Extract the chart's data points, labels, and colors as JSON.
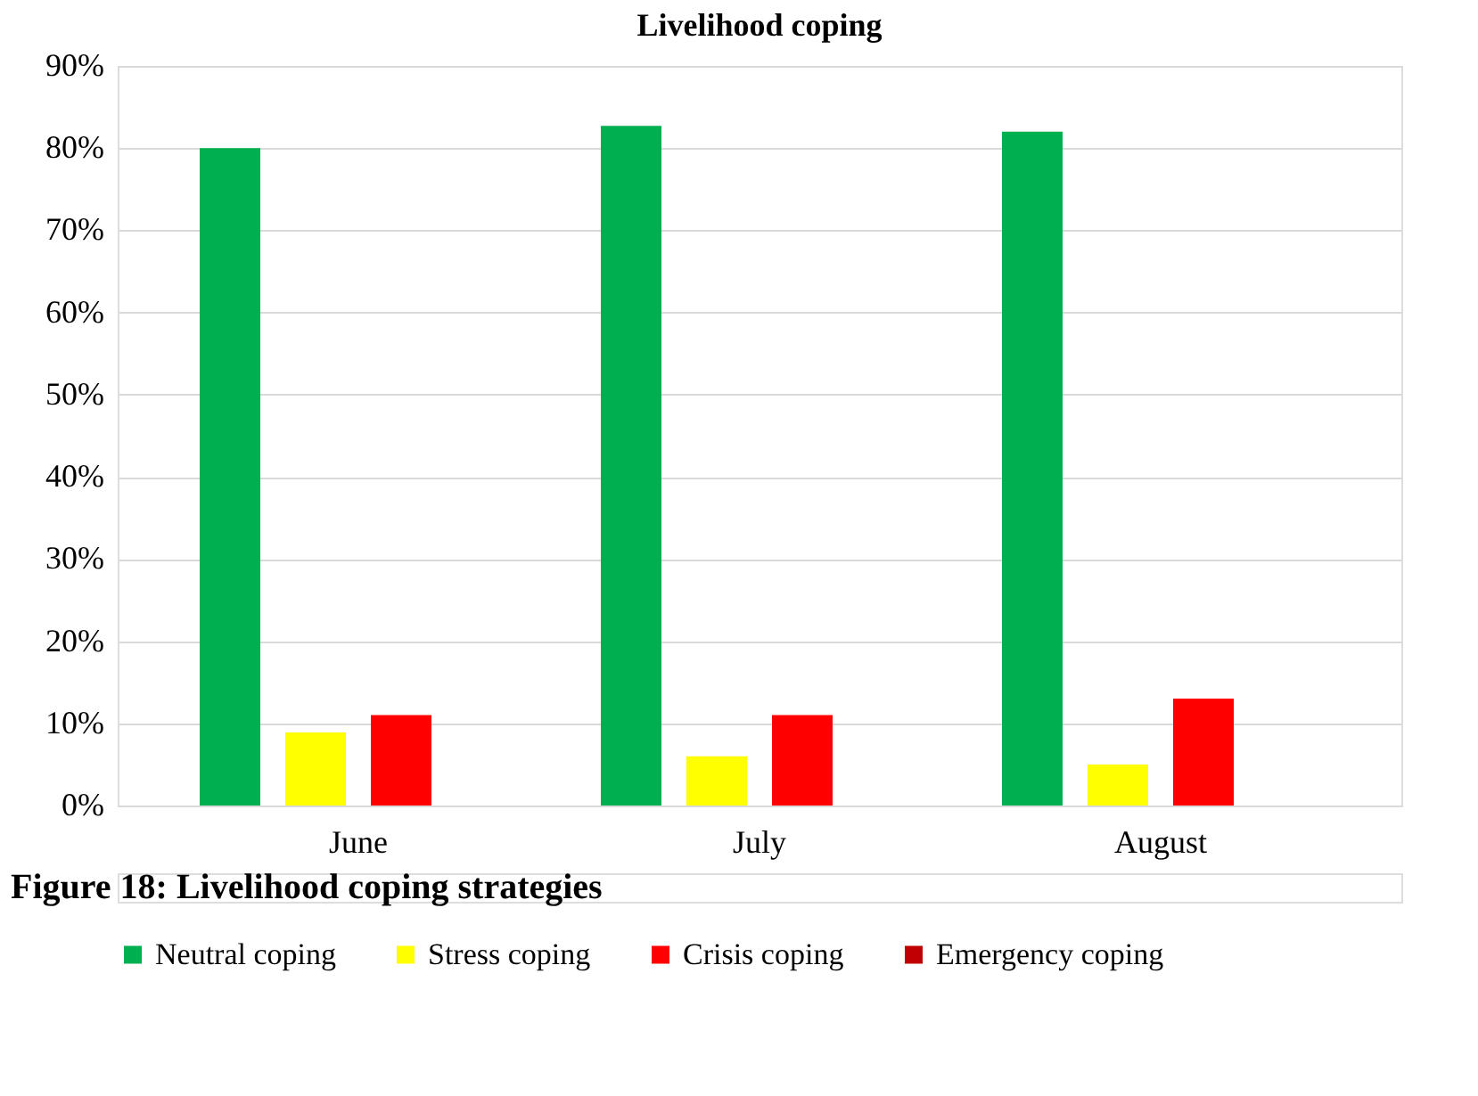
{
  "chart_data": {
    "type": "bar",
    "title": "Livelihood coping",
    "categories": [
      "June",
      "July",
      "August"
    ],
    "series": [
      {
        "name": "Neutral coping",
        "color": "#00b050",
        "values": [
          80,
          82.7,
          82
        ]
      },
      {
        "name": "Stress coping",
        "color": "#ffff00",
        "values": [
          8.9,
          6,
          5
        ]
      },
      {
        "name": "Crisis coping",
        "color": "#ff0000",
        "values": [
          11,
          11,
          13
        ]
      },
      {
        "name": "Emergency coping",
        "color": "#c00000",
        "values": [
          0,
          0,
          0
        ]
      }
    ],
    "ylim": [
      0,
      90
    ],
    "yticks": [
      {
        "value": 0,
        "label": "0%"
      },
      {
        "value": 10,
        "label": "10%"
      },
      {
        "value": 20,
        "label": "20%"
      },
      {
        "value": 30,
        "label": "30%"
      },
      {
        "value": 40,
        "label": "40%"
      },
      {
        "value": 50,
        "label": "50%"
      },
      {
        "value": 60,
        "label": "60%"
      },
      {
        "value": 70,
        "label": "70%"
      },
      {
        "value": 80,
        "label": "80%"
      },
      {
        "value": 90,
        "label": "90%"
      }
    ],
    "grid": "y",
    "legend": "bottom",
    "annotations": [
      "Figure 18: Livelihood coping strategies"
    ]
  }
}
